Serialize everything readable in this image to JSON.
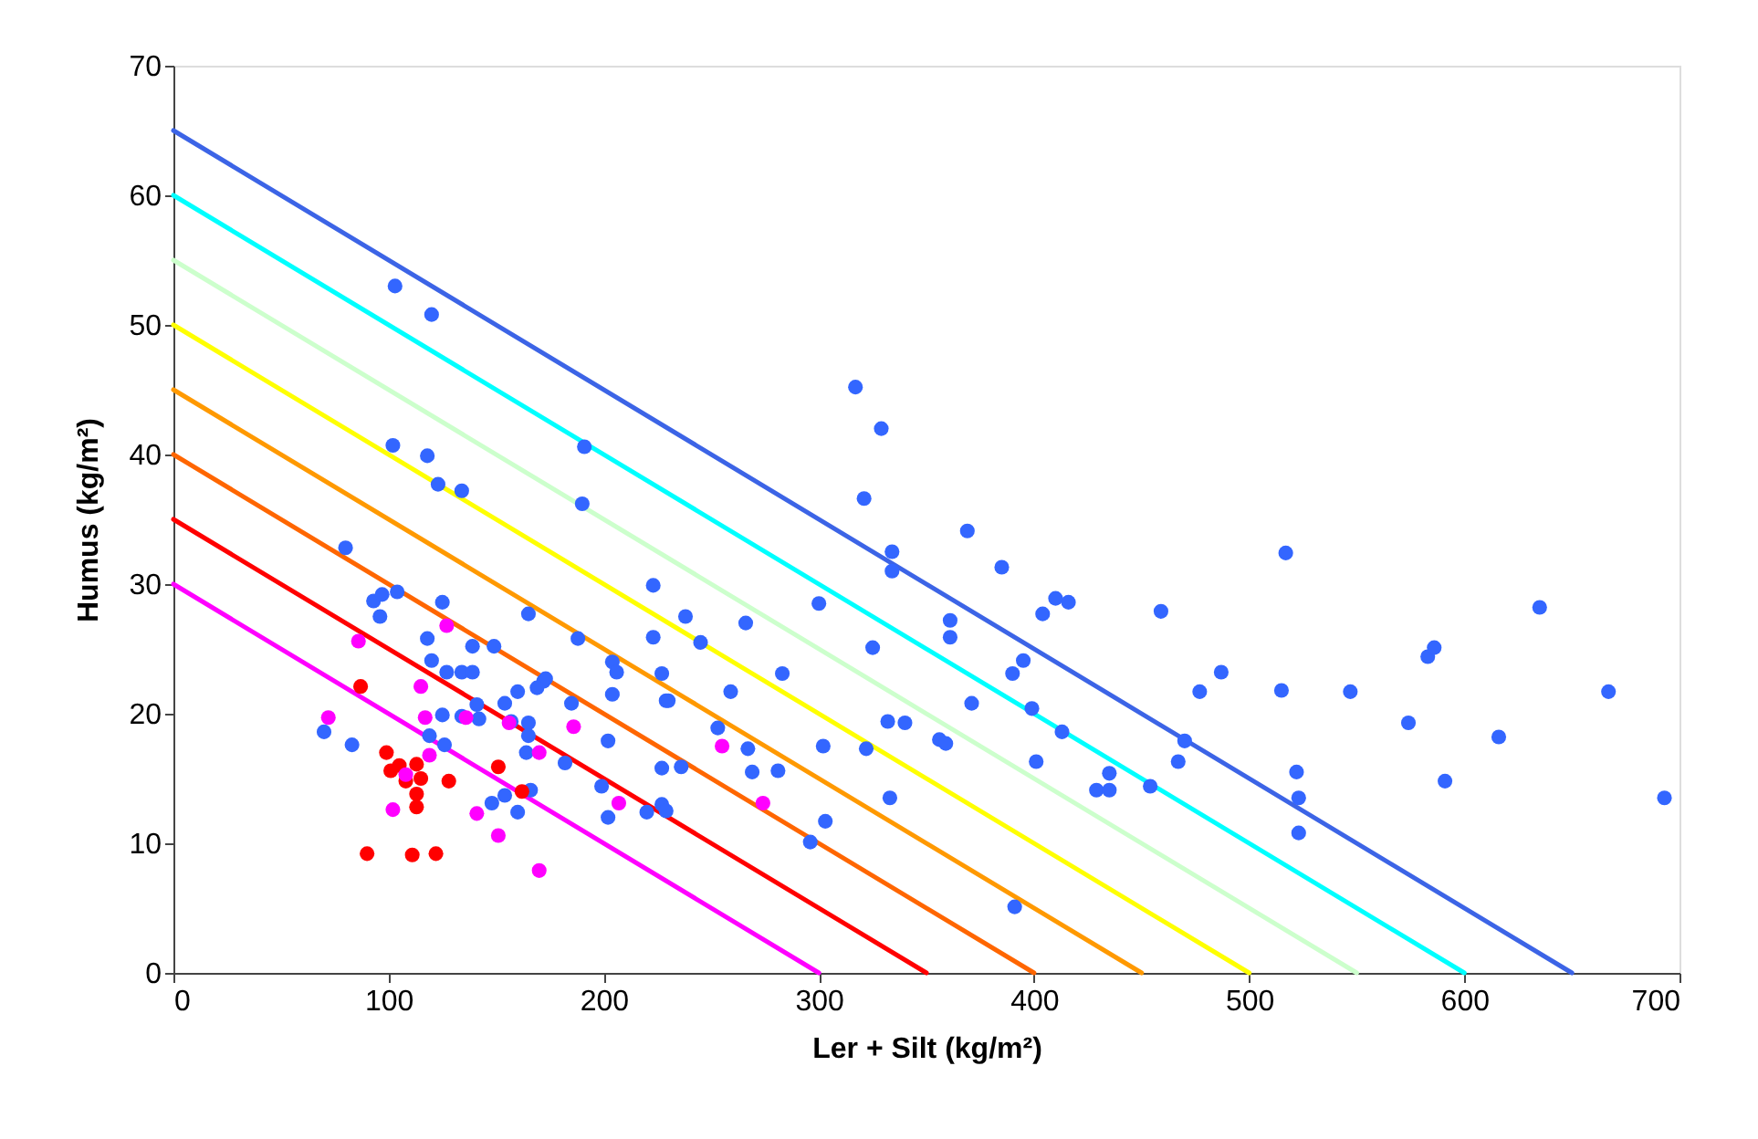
{
  "chart_data": {
    "type": "scatter",
    "xlabel": "Ler + Silt (kg/m²)",
    "ylabel": "Humus (kg/m²)",
    "xlim": [
      0,
      700
    ],
    "xticks": [
      0,
      100,
      200,
      300,
      400,
      500,
      600,
      700
    ],
    "ylim": [
      0,
      70
    ],
    "yticks": [
      0,
      10,
      20,
      30,
      40,
      50,
      60,
      70
    ],
    "grid": false,
    "line_style": "solid",
    "series": [
      {
        "type": "line",
        "color": "#3c64e6",
        "x": [
          0,
          650
        ],
        "values": [
          65,
          0
        ]
      },
      {
        "type": "line",
        "color": "#00ffff",
        "x": [
          0,
          600
        ],
        "values": [
          60,
          0
        ]
      },
      {
        "type": "line",
        "color": "#ccffcc",
        "x": [
          0,
          550
        ],
        "values": [
          55,
          0
        ]
      },
      {
        "type": "line",
        "color": "#ffff00",
        "x": [
          0,
          500
        ],
        "values": [
          50,
          0
        ]
      },
      {
        "type": "line",
        "color": "#ff9900",
        "x": [
          0,
          450
        ],
        "values": [
          45,
          0
        ]
      },
      {
        "type": "line",
        "color": "#ff6600",
        "x": [
          0,
          400
        ],
        "values": [
          40,
          0
        ]
      },
      {
        "type": "line",
        "color": "#ff0000",
        "x": [
          0,
          350
        ],
        "values": [
          35,
          0
        ]
      },
      {
        "type": "line",
        "color": "#ff00ff",
        "x": [
          0,
          300
        ],
        "values": [
          30,
          0
        ]
      },
      {
        "marker": "circle",
        "color": "#3366ff",
        "x": [
          103,
          120,
          102,
          118,
          123,
          134,
          80,
          93,
          97,
          104,
          96,
          125,
          118,
          120,
          127,
          134,
          139,
          139,
          149,
          165,
          154,
          160,
          141,
          142,
          134,
          125,
          119,
          126,
          70,
          83,
          164,
          172,
          165,
          165,
          166,
          160,
          154,
          148,
          157,
          191,
          190,
          223,
          188,
          223,
          204,
          206,
          227,
          173,
          169,
          204,
          185,
          202,
          182,
          199,
          202,
          220,
          227,
          229,
          227,
          229,
          317,
          329,
          321,
          369,
          334,
          334,
          385,
          410,
          416,
          404,
          300,
          238,
          266,
          361,
          361,
          245,
          325,
          395,
          390,
          283,
          259,
          230,
          371,
          399,
          413,
          332,
          340,
          356,
          359,
          401,
          302,
          322,
          267,
          253,
          269,
          281,
          236,
          333,
          303,
          296,
          391,
          429,
          435,
          435,
          517,
          459,
          635,
          487,
          477,
          515,
          547,
          667,
          583,
          586,
          574,
          616,
          470,
          467,
          454,
          522,
          523,
          523,
          591,
          693
        ],
        "values": [
          53.0,
          50.8,
          40.7,
          39.9,
          37.7,
          37.2,
          32.8,
          28.7,
          29.2,
          29.4,
          27.5,
          28.6,
          25.8,
          24.1,
          23.2,
          23.2,
          23.2,
          25.2,
          25.2,
          27.7,
          20.8,
          21.7,
          20.7,
          19.6,
          19.8,
          19.9,
          18.3,
          17.6,
          18.6,
          17.6,
          17.0,
          22.5,
          19.3,
          18.3,
          14.1,
          12.4,
          13.7,
          13.1,
          19.4,
          40.6,
          36.2,
          29.9,
          25.8,
          25.9,
          24.0,
          23.2,
          23.1,
          22.7,
          22.0,
          21.5,
          20.8,
          17.9,
          16.2,
          14.4,
          12.0,
          12.4,
          13.0,
          21.0,
          15.8,
          12.5,
          45.2,
          42.0,
          36.6,
          34.1,
          32.5,
          31.0,
          31.3,
          28.9,
          28.6,
          27.7,
          28.5,
          27.5,
          27.0,
          27.2,
          25.9,
          25.5,
          25.1,
          24.1,
          23.1,
          23.1,
          21.7,
          21.0,
          20.8,
          20.4,
          18.6,
          19.4,
          19.3,
          18.0,
          17.7,
          16.3,
          17.5,
          17.3,
          17.3,
          18.9,
          15.5,
          15.6,
          15.9,
          13.5,
          11.7,
          10.1,
          5.1,
          14.1,
          14.1,
          15.4,
          32.4,
          27.9,
          28.2,
          23.2,
          21.7,
          21.8,
          21.7,
          21.7,
          24.4,
          25.1,
          19.3,
          18.2,
          17.9,
          16.3,
          14.4,
          15.5,
          13.5,
          10.8,
          14.8,
          13.5
        ]
      },
      {
        "marker": "circle",
        "color": "#ff0000",
        "x": [
          87,
          99,
          101,
          105,
          108,
          113,
          115,
          113,
          113,
          128,
          151,
          162,
          90,
          111,
          122
        ],
        "values": [
          22.1,
          17.0,
          15.6,
          16.0,
          14.8,
          16.1,
          15.0,
          13.8,
          12.8,
          14.8,
          15.9,
          14.0,
          9.2,
          9.1,
          9.2
        ]
      },
      {
        "marker": "circle",
        "color": "#ff00ff",
        "x": [
          72,
          86,
          102,
          108,
          115,
          117,
          119,
          127,
          136,
          141,
          156,
          151,
          170,
          170,
          186,
          207,
          255,
          274
        ],
        "values": [
          19.7,
          25.6,
          12.6,
          15.3,
          22.1,
          19.7,
          16.8,
          26.8,
          19.7,
          12.3,
          19.3,
          10.6,
          17.0,
          7.9,
          19.0,
          13.1,
          17.5,
          13.1
        ]
      }
    ]
  }
}
